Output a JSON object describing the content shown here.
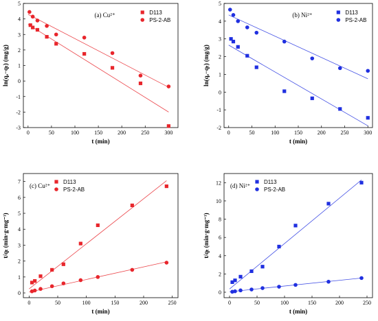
{
  "chart_data": [
    {
      "type": "scatter",
      "panel_label": "(a) Cu²⁺",
      "xlabel": "t (min)",
      "ylabel": "ln(qₑ−qₜ) (mg/g)",
      "xlim": [
        -10,
        320
      ],
      "ylim": [
        -3,
        5
      ],
      "xticks": [
        0,
        50,
        100,
        150,
        200,
        250,
        300
      ],
      "yticks": [
        -3,
        -2,
        -1,
        0,
        1,
        2,
        3,
        4,
        5
      ],
      "legend_position": "top-right",
      "color": "#e8262c",
      "series": [
        {
          "name": "D113",
          "marker": "square",
          "x": [
            5,
            10,
            20,
            40,
            60,
            120,
            180,
            240,
            300
          ],
          "y": [
            3.6,
            3.45,
            3.3,
            2.85,
            2.4,
            1.75,
            0.85,
            -0.15,
            -2.9
          ],
          "fit": [
            [
              0,
              3.65
            ],
            [
              300,
              -2.0
            ]
          ]
        },
        {
          "name": "PS-2-AB",
          "marker": "circle",
          "x": [
            3,
            10,
            20,
            40,
            60,
            120,
            180,
            240,
            300
          ],
          "y": [
            4.45,
            4.15,
            3.9,
            3.55,
            3.0,
            2.8,
            1.8,
            0.35,
            -0.35
          ],
          "fit": [
            [
              0,
              4.3
            ],
            [
              300,
              -0.4
            ]
          ]
        }
      ]
    },
    {
      "type": "scatter",
      "panel_label": "(b) Ni²⁺",
      "xlabel": "t (min)",
      "ylabel": "ln(qₑ−qₜ) (mg/g)",
      "xlim": [
        -10,
        310
      ],
      "ylim": [
        -2,
        5
      ],
      "xticks": [
        0,
        50,
        100,
        150,
        200,
        250,
        300
      ],
      "yticks": [
        -2,
        -1,
        0,
        1,
        2,
        3,
        4,
        5
      ],
      "legend_position": "top-right",
      "color": "#2030e0",
      "series": [
        {
          "name": "D113",
          "marker": "square",
          "x": [
            5,
            10,
            20,
            40,
            60,
            120,
            180,
            240,
            300
          ],
          "y": [
            3.0,
            2.85,
            2.55,
            2.05,
            1.4,
            0.05,
            -0.35,
            -0.95,
            -1.45
          ],
          "fit": [
            [
              0,
              2.65
            ],
            [
              300,
              -1.9
            ]
          ]
        },
        {
          "name": "PS-2-AB",
          "marker": "circle",
          "x": [
            3,
            10,
            20,
            40,
            60,
            120,
            180,
            240,
            300
          ],
          "y": [
            4.65,
            4.35,
            4.0,
            3.65,
            3.35,
            2.85,
            1.9,
            1.35,
            1.2
          ],
          "fit": [
            [
              0,
              4.35
            ],
            [
              300,
              0.75
            ]
          ]
        }
      ]
    },
    {
      "type": "scatter",
      "panel_label": "(c) Cu²⁺",
      "xlabel": "t (min)",
      "ylabel": "t/qₜ (min·g·mg⁻¹)",
      "xlim": [
        -10,
        260
      ],
      "ylim": [
        -0.3,
        7.5
      ],
      "xticks": [
        0,
        50,
        100,
        150,
        200,
        250
      ],
      "yticks": [
        0,
        1,
        2,
        3,
        4,
        5,
        6,
        7
      ],
      "legend_position": "top-left",
      "color": "#e8262c",
      "series": [
        {
          "name": "D113",
          "marker": "square",
          "x": [
            5,
            10,
            20,
            40,
            60,
            90,
            120,
            180,
            240
          ],
          "y": [
            0.65,
            0.75,
            1.05,
            1.45,
            1.8,
            3.1,
            4.25,
            5.5,
            6.7
          ],
          "fit": [
            [
              0,
              0.25
            ],
            [
              240,
              7.05
            ]
          ]
        },
        {
          "name": "PS-2-AB",
          "marker": "circle",
          "x": [
            5,
            10,
            20,
            40,
            60,
            90,
            120,
            180,
            240
          ],
          "y": [
            0.1,
            0.15,
            0.25,
            0.42,
            0.6,
            0.8,
            1.0,
            1.45,
            1.9
          ],
          "fit": [
            [
              0,
              0.05
            ],
            [
              240,
              1.95
            ]
          ]
        }
      ]
    },
    {
      "type": "scatter",
      "panel_label": "(d) Ni²⁺",
      "xlabel": "t (min)",
      "ylabel": "t/qₜ (min·g·mg⁻¹)",
      "xlim": [
        -10,
        260
      ],
      "ylim": [
        -0.6,
        13
      ],
      "xticks": [
        0,
        50,
        100,
        150,
        200,
        250
      ],
      "yticks": [
        0,
        2,
        4,
        6,
        8,
        10,
        12
      ],
      "legend_position": "top-left",
      "color": "#2030e0",
      "series": [
        {
          "name": "D113",
          "marker": "square",
          "x": [
            5,
            10,
            20,
            40,
            60,
            90,
            120,
            180,
            240
          ],
          "y": [
            1.1,
            1.3,
            1.7,
            2.3,
            2.8,
            5.0,
            7.3,
            9.7,
            12.0
          ],
          "fit": [
            [
              0,
              0.35
            ],
            [
              240,
              12.3
            ]
          ]
        },
        {
          "name": "PS-2-AB",
          "marker": "circle",
          "x": [
            5,
            10,
            20,
            40,
            60,
            90,
            120,
            180,
            240
          ],
          "y": [
            0.05,
            0.1,
            0.2,
            0.3,
            0.45,
            0.6,
            0.8,
            1.15,
            1.55
          ],
          "fit": [
            [
              0,
              0.05
            ],
            [
              240,
              1.55
            ]
          ]
        }
      ]
    }
  ]
}
